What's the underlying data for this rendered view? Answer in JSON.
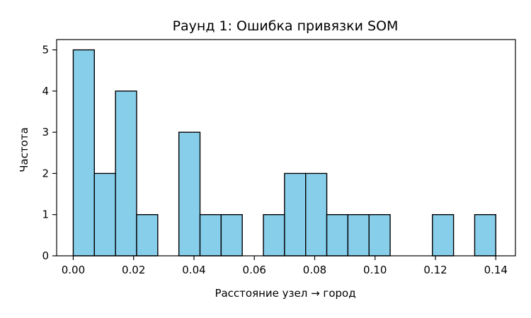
{
  "chart_data": {
    "type": "bar",
    "title": "Раунд 1: Ошибка привязки SOM",
    "xlabel": "Расстояние узел → город",
    "ylabel": "Частота",
    "xlim": [
      -0.0055,
      0.1465
    ],
    "ylim": [
      0,
      5.25
    ],
    "xticks": [
      0.0,
      0.02,
      0.04,
      0.06,
      0.08,
      0.1,
      0.12,
      0.14
    ],
    "xtick_labels": [
      "0.00",
      "0.02",
      "0.04",
      "0.06",
      "0.08",
      "0.10",
      "0.12",
      "0.14"
    ],
    "yticks": [
      0,
      1,
      2,
      3,
      4,
      5
    ],
    "ytick_labels": [
      "0",
      "1",
      "2",
      "3",
      "4",
      "5"
    ],
    "bin_edges": [
      0.0,
      0.007,
      0.014,
      0.021,
      0.028,
      0.035,
      0.042,
      0.049,
      0.056,
      0.063,
      0.07,
      0.077,
      0.084,
      0.091,
      0.098,
      0.105,
      0.112,
      0.119,
      0.126,
      0.133,
      0.14
    ],
    "values": [
      5,
      2,
      4,
      1,
      0,
      3,
      1,
      1,
      0,
      1,
      2,
      2,
      1,
      1,
      1,
      0,
      0,
      1,
      0,
      1
    ],
    "bar_color": "#87ceeb",
    "edge_color": "#000000",
    "grid": false
  }
}
